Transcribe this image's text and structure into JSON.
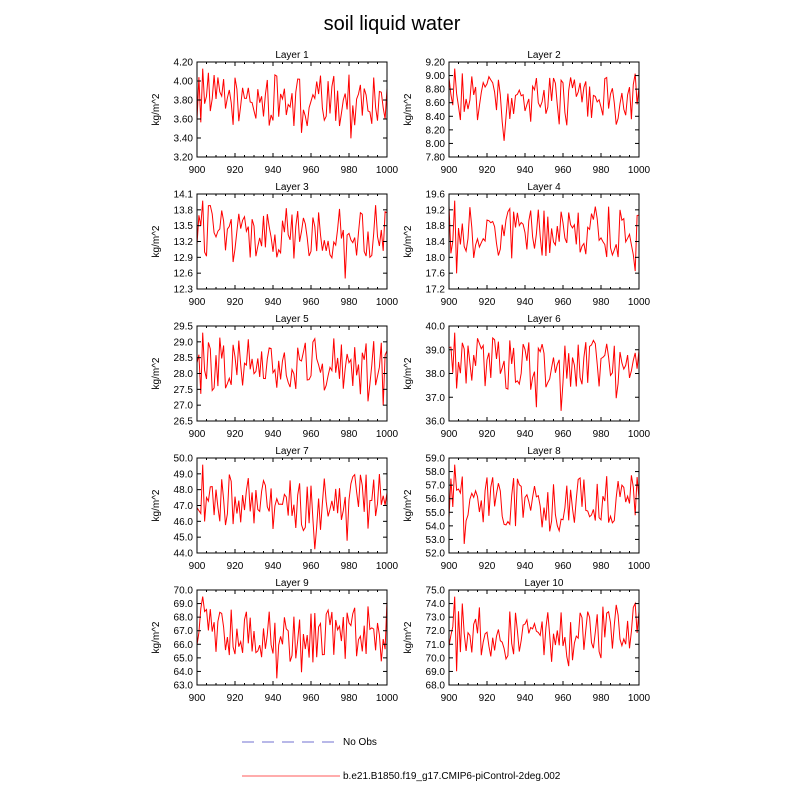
{
  "figure_title": "soil liquid water",
  "legend": [
    {
      "label": "No Obs",
      "style": "dashed",
      "color": "#a0a0e0"
    },
    {
      "label": "b.e21.B1850.f19_g17.CMIP6-piControl-2deg.002",
      "style": "solid",
      "color": "#ff9090"
    }
  ],
  "colors": {
    "series": "#ff0000",
    "frame": "#000000"
  },
  "chart_data": [
    {
      "type": "line",
      "title": "Layer 1",
      "xlabel": "",
      "ylabel": "kg/m^2",
      "xlim": [
        900,
        1000
      ],
      "ylim": [
        3.2,
        4.2
      ],
      "xticks": [
        "900",
        "920",
        "940",
        "960",
        "980",
        "1000"
      ],
      "yticks": [
        "3.20",
        "3.40",
        "3.60",
        "3.80",
        "4.00",
        "4.20"
      ],
      "series": [
        {
          "name": "b.e21.B1850.f19_g17.CMIP6-piControl-2deg.002"
        }
      ]
    },
    {
      "type": "line",
      "title": "Layer 2",
      "xlabel": "",
      "ylabel": "kg/m^2",
      "xlim": [
        900,
        1000
      ],
      "ylim": [
        7.8,
        9.2
      ],
      "xticks": [
        "900",
        "920",
        "940",
        "960",
        "980",
        "1000"
      ],
      "yticks": [
        "7.80",
        "8.00",
        "8.20",
        "8.40",
        "8.60",
        "8.80",
        "9.00",
        "9.20"
      ],
      "series": [
        {
          "name": "b.e21.B1850.f19_g17.CMIP6-piControl-2deg.002"
        }
      ]
    },
    {
      "type": "line",
      "title": "Layer 3",
      "xlabel": "",
      "ylabel": "kg/m^2",
      "xlim": [
        900,
        1000
      ],
      "ylim": [
        12.3,
        14.1
      ],
      "xticks": [
        "900",
        "920",
        "940",
        "960",
        "980",
        "1000"
      ],
      "yticks": [
        "12.3",
        "12.6",
        "12.9",
        "13.2",
        "13.5",
        "13.8",
        "14.1"
      ],
      "series": [
        {
          "name": "b.e21.B1850.f19_g17.CMIP6-piControl-2deg.002"
        }
      ]
    },
    {
      "type": "line",
      "title": "Layer 4",
      "xlabel": "",
      "ylabel": "kg/m^2",
      "xlim": [
        900,
        1000
      ],
      "ylim": [
        17.2,
        19.6
      ],
      "xticks": [
        "900",
        "920",
        "940",
        "960",
        "980",
        "1000"
      ],
      "yticks": [
        "17.2",
        "17.6",
        "18.0",
        "18.4",
        "18.8",
        "19.2",
        "19.6"
      ],
      "series": [
        {
          "name": "b.e21.B1850.f19_g17.CMIP6-piControl-2deg.002"
        }
      ]
    },
    {
      "type": "line",
      "title": "Layer 5",
      "xlabel": "",
      "ylabel": "kg/m^2",
      "xlim": [
        900,
        1000
      ],
      "ylim": [
        26.5,
        29.5
      ],
      "xticks": [
        "900",
        "920",
        "940",
        "960",
        "980",
        "1000"
      ],
      "yticks": [
        "26.5",
        "27.0",
        "27.5",
        "28.0",
        "28.5",
        "29.0",
        "29.5"
      ],
      "series": [
        {
          "name": "b.e21.B1850.f19_g17.CMIP6-piControl-2deg.002"
        }
      ]
    },
    {
      "type": "line",
      "title": "Layer 6",
      "xlabel": "",
      "ylabel": "kg/m^2",
      "xlim": [
        900,
        1000
      ],
      "ylim": [
        36.0,
        40.0
      ],
      "xticks": [
        "900",
        "920",
        "940",
        "960",
        "980",
        "1000"
      ],
      "yticks": [
        "36.0",
        "37.0",
        "38.0",
        "39.0",
        "40.0"
      ],
      "series": [
        {
          "name": "b.e21.B1850.f19_g17.CMIP6-piControl-2deg.002"
        }
      ]
    },
    {
      "type": "line",
      "title": "Layer 7",
      "xlabel": "",
      "ylabel": "kg/m^2",
      "xlim": [
        900,
        1000
      ],
      "ylim": [
        44.0,
        50.0
      ],
      "xticks": [
        "900",
        "920",
        "940",
        "960",
        "980",
        "1000"
      ],
      "yticks": [
        "44.0",
        "45.0",
        "46.0",
        "47.0",
        "48.0",
        "49.0",
        "50.0"
      ],
      "series": [
        {
          "name": "b.e21.B1850.f19_g17.CMIP6-piControl-2deg.002"
        }
      ]
    },
    {
      "type": "line",
      "title": "Layer 8",
      "xlabel": "",
      "ylabel": "kg/m^2",
      "xlim": [
        900,
        1000
      ],
      "ylim": [
        52.0,
        59.0
      ],
      "xticks": [
        "900",
        "920",
        "940",
        "960",
        "980",
        "1000"
      ],
      "yticks": [
        "52.0",
        "53.0",
        "54.0",
        "55.0",
        "56.0",
        "57.0",
        "58.0",
        "59.0"
      ],
      "series": [
        {
          "name": "b.e21.B1850.f19_g17.CMIP6-piControl-2deg.002"
        }
      ]
    },
    {
      "type": "line",
      "title": "Layer 9",
      "xlabel": "",
      "ylabel": "kg/m^2",
      "xlim": [
        900,
        1000
      ],
      "ylim": [
        63.0,
        70.0
      ],
      "xticks": [
        "900",
        "920",
        "940",
        "960",
        "980",
        "1000"
      ],
      "yticks": [
        "63.0",
        "64.0",
        "65.0",
        "66.0",
        "67.0",
        "68.0",
        "69.0",
        "70.0"
      ],
      "series": [
        {
          "name": "b.e21.B1850.f19_g17.CMIP6-piControl-2deg.002"
        }
      ]
    },
    {
      "type": "line",
      "title": "Layer 10",
      "xlabel": "",
      "ylabel": "kg/m^2",
      "xlim": [
        900,
        1000
      ],
      "ylim": [
        68.0,
        75.0
      ],
      "xticks": [
        "900",
        "920",
        "940",
        "960",
        "980",
        "1000"
      ],
      "yticks": [
        "68.0",
        "69.0",
        "70.0",
        "71.0",
        "72.0",
        "73.0",
        "74.0",
        "75.0"
      ],
      "series": [
        {
          "name": "b.e21.B1850.f19_g17.CMIP6-piControl-2deg.002"
        }
      ]
    }
  ]
}
